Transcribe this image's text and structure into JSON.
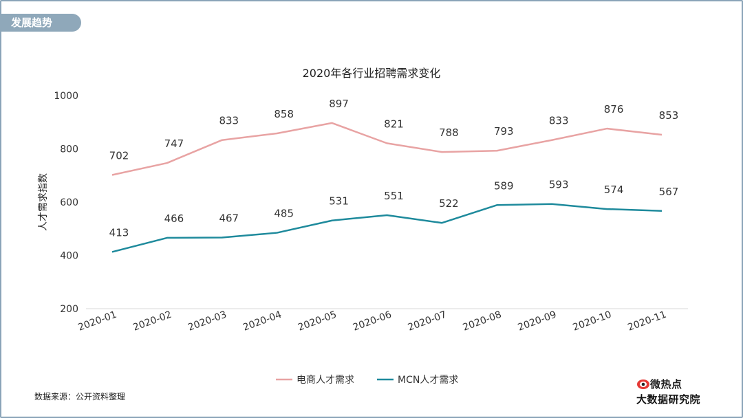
{
  "section_tag": "发展趋势",
  "source_note": "数据来源：公开资料整理",
  "logo": {
    "icon": "weibo-eye-icon",
    "line1": "微热点",
    "line2": "大数据研究院"
  },
  "colors": {
    "series1": "#e8a3a3",
    "series2": "#1e8a9c",
    "tag_bg": "#8fa8ba",
    "frame": "#8aa4b8"
  },
  "chart_data": {
    "type": "line",
    "title": "2020年各行业招聘需求变化",
    "ylabel": "人才需求指数",
    "xlabel": "",
    "ylim": [
      200,
      1000
    ],
    "yticks": [
      200,
      400,
      600,
      800,
      1000
    ],
    "categories": [
      "2020-01",
      "2020-02",
      "2020-03",
      "2020-04",
      "2020-05",
      "2020-06",
      "2020-07",
      "2020-08",
      "2020-09",
      "2020-10",
      "2020-11"
    ],
    "series": [
      {
        "name": "电商人才需求",
        "color": "#e8a3a3",
        "values": [
          702,
          747,
          833,
          858,
          897,
          821,
          788,
          793,
          833,
          876,
          853
        ]
      },
      {
        "name": "MCN人才需求",
        "color": "#1e8a9c",
        "values": [
          413,
          466,
          467,
          485,
          531,
          551,
          522,
          589,
          593,
          574,
          567
        ]
      }
    ],
    "legend_position": "bottom",
    "grid": false
  }
}
